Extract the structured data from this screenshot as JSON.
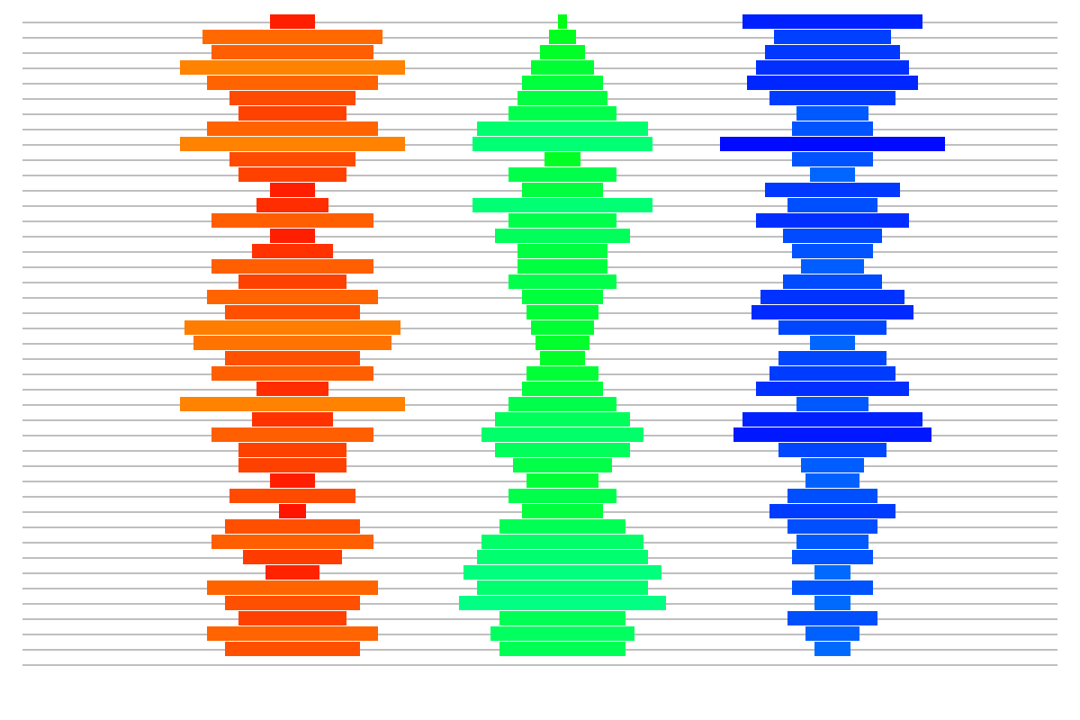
{
  "chart_data": {
    "type": "bar",
    "orientation": "horizontal-centered",
    "grid": true,
    "series": [
      {
        "palette": "red-orange",
        "values": [
          50,
          200,
          180,
          250,
          190,
          140,
          120,
          190,
          250,
          140,
          120,
          50,
          80,
          180,
          50,
          90,
          180,
          120,
          190,
          150,
          240,
          220,
          150,
          180,
          80,
          250,
          90,
          180,
          120,
          120,
          50,
          140,
          30,
          150,
          180,
          110,
          60,
          190,
          150,
          120,
          190,
          150
        ]
      },
      {
        "palette": "green",
        "values": [
          10,
          30,
          50,
          70,
          90,
          100,
          120,
          190,
          200,
          40,
          120,
          90,
          200,
          120,
          150,
          100,
          100,
          120,
          90,
          80,
          70,
          60,
          50,
          80,
          90,
          120,
          150,
          180,
          150,
          110,
          80,
          120,
          90,
          140,
          180,
          190,
          220,
          190,
          230,
          140,
          160,
          140
        ]
      },
      {
        "palette": "blue",
        "values": [
          200,
          130,
          150,
          170,
          190,
          140,
          80,
          90,
          250,
          90,
          50,
          150,
          100,
          170,
          110,
          90,
          70,
          110,
          160,
          180,
          120,
          50,
          120,
          140,
          170,
          80,
          200,
          220,
          120,
          70,
          60,
          100,
          140,
          100,
          80,
          90,
          40,
          90,
          40,
          100,
          60,
          40
        ]
      }
    ]
  }
}
